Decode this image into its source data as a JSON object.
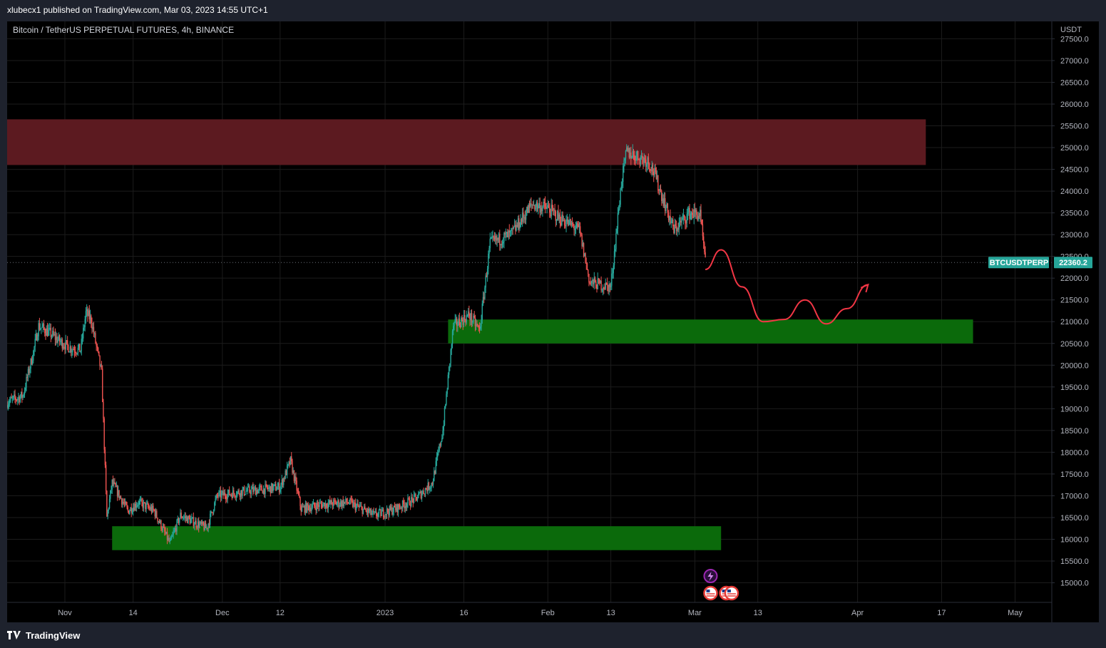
{
  "header": {
    "publish_line": "xlubecx1 published on TradingView.com, Mar 03, 2023 14:55 UTC+1"
  },
  "footer": {
    "brand": "TradingView"
  },
  "chart": {
    "symbol_title": "Bitcoin / TetherUS PERPETUAL FUTURES, 4h, BINANCE",
    "currency_label": "USDT",
    "last_price_badge": {
      "symbol": "BTCUSDTPERP",
      "price": "22360.2"
    },
    "colors": {
      "up": "#26a69a",
      "down": "#ef5350",
      "resistance_zone": "#5c1a20",
      "support_zone": "#0b6a0b",
      "projection": "#f23645",
      "badge": "#26a69a",
      "axis_text": "#b2b5be",
      "grid": "#1c1c1c"
    },
    "icons": [
      "lightning-event-icon",
      "us-flag-event-icon"
    ]
  },
  "chart_data": {
    "type": "candlestick",
    "title": "Bitcoin / TetherUS PERPETUAL FUTURES, 4h, BINANCE",
    "timeframe": "4h",
    "y_unit": "USDT",
    "ylim": [
      14550,
      27900
    ],
    "y_ticks": [
      "15000.0",
      "15500.0",
      "16000.0",
      "16500.0",
      "17000.0",
      "17500.0",
      "18000.0",
      "18500.0",
      "19000.0",
      "19500.0",
      "20000.0",
      "20500.0",
      "21000.0",
      "21500.0",
      "22000.0",
      "22500.0",
      "23000.0",
      "23500.0",
      "24000.0",
      "24500.0",
      "25000.0",
      "25500.0",
      "26000.0",
      "26500.0",
      "27000.0",
      "27500.0"
    ],
    "x_range": [
      "2022-10-21",
      "2023-05-08"
    ],
    "x_ticks": [
      {
        "date": "2022-11-01",
        "label": "Nov"
      },
      {
        "date": "2022-11-14",
        "label": "14"
      },
      {
        "date": "2022-12-01",
        "label": "Dec"
      },
      {
        "date": "2022-12-12",
        "label": "12"
      },
      {
        "date": "2023-01-01",
        "label": "2023"
      },
      {
        "date": "2023-01-16",
        "label": "16"
      },
      {
        "date": "2023-02-01",
        "label": "Feb"
      },
      {
        "date": "2023-02-13",
        "label": "13"
      },
      {
        "date": "2023-03-01",
        "label": "Mar"
      },
      {
        "date": "2023-03-13",
        "label": "13"
      },
      {
        "date": "2023-04-01",
        "label": "Apr"
      },
      {
        "date": "2023-04-17",
        "label": "17"
      },
      {
        "date": "2023-05-01",
        "label": "May"
      }
    ],
    "price_path": [
      [
        "2022-10-21",
        19150
      ],
      [
        "2022-10-24",
        19300
      ],
      [
        "2022-10-26",
        20300
      ],
      [
        "2022-10-27",
        20900
      ],
      [
        "2022-10-29",
        20750
      ],
      [
        "2022-10-31",
        20550
      ],
      [
        "2022-11-02",
        20400
      ],
      [
        "2022-11-04",
        20350
      ],
      [
        "2022-11-05",
        21200
      ],
      [
        "2022-11-06",
        21050
      ],
      [
        "2022-11-08",
        19800
      ],
      [
        "2022-11-09",
        16500
      ],
      [
        "2022-11-10",
        17300
      ],
      [
        "2022-11-13",
        16650
      ],
      [
        "2022-11-15",
        16850
      ],
      [
        "2022-11-18",
        16650
      ],
      [
        "2022-11-21",
        15900
      ],
      [
        "2022-11-23",
        16550
      ],
      [
        "2022-11-28",
        16250
      ],
      [
        "2022-11-30",
        17000
      ],
      [
        "2022-12-05",
        17100
      ],
      [
        "2022-12-09",
        17150
      ],
      [
        "2022-12-12",
        17200
      ],
      [
        "2022-12-14",
        17800
      ],
      [
        "2022-12-16",
        16700
      ],
      [
        "2022-12-20",
        16800
      ],
      [
        "2022-12-25",
        16850
      ],
      [
        "2022-12-30",
        16550
      ],
      [
        "2023-01-03",
        16700
      ],
      [
        "2023-01-07",
        16950
      ],
      [
        "2023-01-10",
        17300
      ],
      [
        "2023-01-12",
        18500
      ],
      [
        "2023-01-14",
        20900
      ],
      [
        "2023-01-17",
        21150
      ],
      [
        "2023-01-19",
        20800
      ],
      [
        "2023-01-21",
        22800
      ],
      [
        "2023-01-25",
        23000
      ],
      [
        "2023-01-29",
        23700
      ],
      [
        "2023-02-01",
        23600
      ],
      [
        "2023-02-03",
        23400
      ],
      [
        "2023-02-07",
        23100
      ],
      [
        "2023-02-09",
        21900
      ],
      [
        "2023-02-13",
        21800
      ],
      [
        "2023-02-15",
        24200
      ],
      [
        "2023-02-16",
        24900
      ],
      [
        "2023-02-20",
        24700
      ],
      [
        "2023-02-21",
        24500
      ],
      [
        "2023-02-23",
        23800
      ],
      [
        "2023-02-25",
        23100
      ],
      [
        "2023-02-28",
        23500
      ],
      [
        "2023-03-02",
        23450
      ],
      [
        "2023-03-03",
        22360
      ]
    ],
    "zones": [
      {
        "name": "resistance",
        "from": "2022-10-21",
        "to": "2023-04-14",
        "low": 24600,
        "high": 25650
      },
      {
        "name": "support",
        "from": "2023-01-13",
        "to": "2023-04-23",
        "low": 20500,
        "high": 21050
      },
      {
        "name": "support",
        "from": "2022-11-10",
        "to": "2023-03-06",
        "low": 15750,
        "high": 16300
      }
    ],
    "projection_path": [
      [
        "2023-03-03",
        22200
      ],
      [
        "2023-03-06",
        22650
      ],
      [
        "2023-03-10",
        21800
      ],
      [
        "2023-03-14",
        21000
      ],
      [
        "2023-03-18",
        21050
      ],
      [
        "2023-03-22",
        21500
      ],
      [
        "2023-03-26",
        20950
      ],
      [
        "2023-03-30",
        21300
      ],
      [
        "2023-04-03",
        21850
      ]
    ],
    "last_price": 22360.2,
    "events": [
      {
        "date": "2023-03-04",
        "type": "lightning"
      },
      {
        "date": "2023-03-04",
        "type": "us"
      },
      {
        "date": "2023-03-07",
        "type": "us"
      },
      {
        "date": "2023-03-08",
        "type": "us"
      }
    ]
  }
}
